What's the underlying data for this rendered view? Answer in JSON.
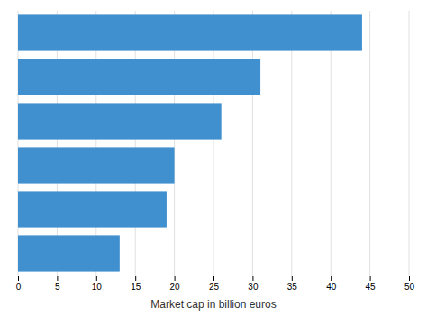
{
  "chart_data": {
    "type": "bar",
    "orientation": "horizontal",
    "values": [
      44,
      31,
      26,
      20,
      19,
      13
    ],
    "color": "#4090d0",
    "xlabel": "Market cap in billion euros",
    "xlim": [
      0,
      50
    ],
    "xticks": [
      0,
      5,
      10,
      15,
      20,
      25,
      30,
      35,
      40,
      45,
      50
    ],
    "grid": true,
    "tick_labels": "x"
  }
}
